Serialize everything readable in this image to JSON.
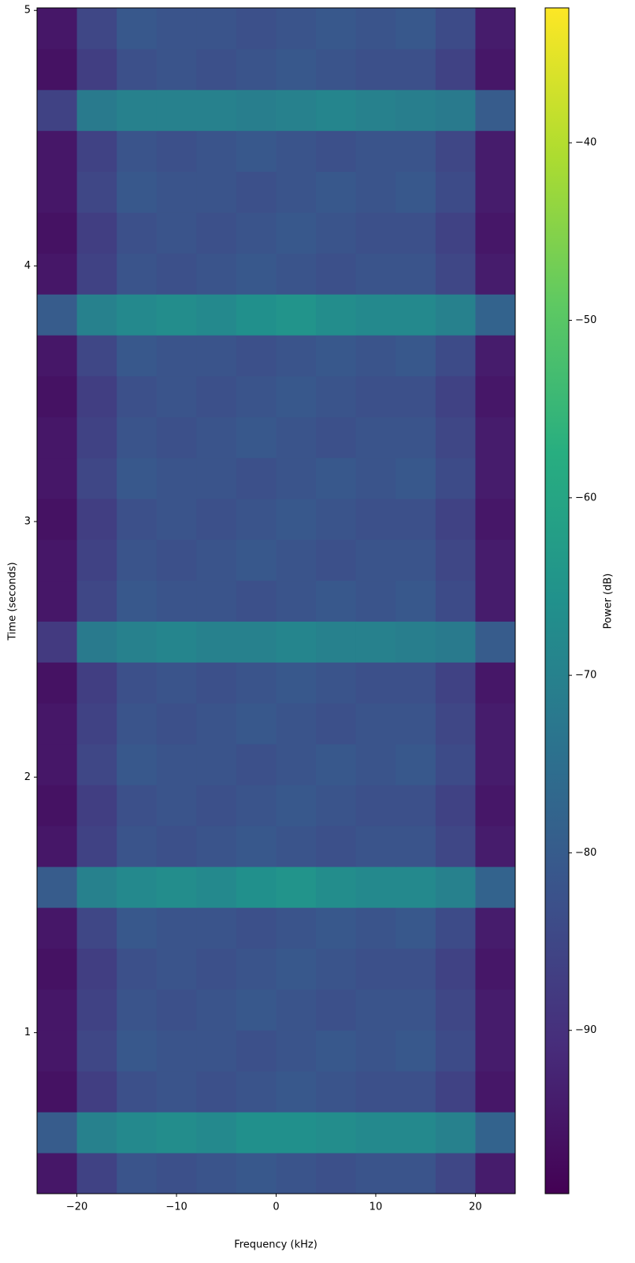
{
  "chart_data": {
    "type": "heatmap",
    "colormap": "viridis",
    "xlabel": "Frequency (kHz)",
    "ylabel": "Time (seconds)",
    "colorbar_label": "Power (dB)",
    "x": [
      -24,
      -20,
      -16,
      -12,
      -8,
      -4,
      0,
      4,
      8,
      12,
      16,
      20,
      24
    ],
    "y": [
      0.37,
      0.53,
      0.69,
      0.85,
      1.01,
      1.17,
      1.33,
      1.49,
      1.65,
      1.81,
      1.97,
      2.13,
      2.29,
      2.45,
      2.61,
      2.77,
      2.93,
      3.09,
      3.25,
      3.41,
      3.57,
      3.73,
      3.89,
      4.05,
      4.21,
      4.37,
      4.53,
      4.69,
      4.85,
      5.01
    ],
    "values": [
      [
        -95,
        -86,
        -82,
        -83,
        -82,
        -81,
        -82,
        -83,
        -82,
        -82,
        -85,
        -94
      ],
      [
        -80,
        -70,
        -68,
        -67,
        -68,
        -66,
        -66,
        -67,
        -68,
        -68,
        -70,
        -78
      ],
      [
        -96,
        -87,
        -83,
        -82,
        -83,
        -82,
        -81,
        -82,
        -83,
        -83,
        -86,
        -95
      ],
      [
        -95,
        -85,
        -81,
        -82,
        -82,
        -83,
        -82,
        -81,
        -82,
        -81,
        -84,
        -94
      ],
      [
        -95,
        -86,
        -82,
        -83,
        -82,
        -81,
        -82,
        -83,
        -82,
        -82,
        -85,
        -94
      ],
      [
        -96,
        -87,
        -83,
        -82,
        -83,
        -82,
        -81,
        -82,
        -83,
        -83,
        -86,
        -95
      ],
      [
        -95,
        -85,
        -81,
        -82,
        -82,
        -83,
        -82,
        -81,
        -82,
        -81,
        -84,
        -94
      ],
      [
        -80,
        -70,
        -68,
        -67,
        -68,
        -66,
        -65,
        -67,
        -68,
        -68,
        -70,
        -78
      ],
      [
        -95,
        -86,
        -82,
        -83,
        -82,
        -81,
        -82,
        -83,
        -82,
        -82,
        -85,
        -94
      ],
      [
        -96,
        -87,
        -83,
        -82,
        -83,
        -82,
        -81,
        -82,
        -83,
        -83,
        -86,
        -95
      ],
      [
        -95,
        -85,
        -81,
        -82,
        -82,
        -83,
        -82,
        -81,
        -82,
        -81,
        -84,
        -94
      ],
      [
        -95,
        -86,
        -82,
        -83,
        -82,
        -81,
        -82,
        -83,
        -82,
        -82,
        -85,
        -94
      ],
      [
        -96,
        -87,
        -83,
        -82,
        -83,
        -82,
        -81,
        -82,
        -83,
        -83,
        -86,
        -95
      ],
      [
        -88,
        -72,
        -70,
        -69,
        -70,
        -70,
        -69,
        -70,
        -70,
        -71,
        -72,
        -80
      ],
      [
        -95,
        -85,
        -81,
        -82,
        -82,
        -83,
        -82,
        -81,
        -82,
        -81,
        -84,
        -94
      ],
      [
        -95,
        -86,
        -82,
        -83,
        -82,
        -81,
        -82,
        -83,
        -82,
        -82,
        -85,
        -94
      ],
      [
        -96,
        -87,
        -83,
        -82,
        -83,
        -82,
        -81,
        -82,
        -83,
        -83,
        -86,
        -95
      ],
      [
        -95,
        -85,
        -81,
        -82,
        -82,
        -83,
        -82,
        -81,
        -82,
        -81,
        -84,
        -94
      ],
      [
        -95,
        -86,
        -82,
        -83,
        -82,
        -81,
        -82,
        -83,
        -82,
        -82,
        -85,
        -94
      ],
      [
        -96,
        -87,
        -83,
        -82,
        -83,
        -82,
        -81,
        -82,
        -83,
        -83,
        -86,
        -95
      ],
      [
        -95,
        -85,
        -81,
        -82,
        -82,
        -83,
        -82,
        -81,
        -82,
        -81,
        -84,
        -94
      ],
      [
        -80,
        -70,
        -68,
        -67,
        -68,
        -66,
        -65,
        -67,
        -68,
        -68,
        -70,
        -78
      ],
      [
        -95,
        -86,
        -82,
        -83,
        -82,
        -81,
        -82,
        -83,
        -82,
        -82,
        -85,
        -94
      ],
      [
        -96,
        -87,
        -83,
        -82,
        -83,
        -82,
        -81,
        -82,
        -83,
        -83,
        -86,
        -95
      ],
      [
        -95,
        -85,
        -81,
        -82,
        -82,
        -83,
        -82,
        -81,
        -82,
        -81,
        -84,
        -94
      ],
      [
        -95,
        -86,
        -82,
        -83,
        -82,
        -81,
        -82,
        -83,
        -82,
        -82,
        -85,
        -94
      ],
      [
        -86,
        -72,
        -70,
        -70,
        -70,
        -71,
        -70,
        -69,
        -70,
        -71,
        -72,
        -80
      ],
      [
        -96,
        -87,
        -83,
        -82,
        -83,
        -82,
        -81,
        -82,
        -83,
        -83,
        -86,
        -95
      ],
      [
        -95,
        -85,
        -81,
        -82,
        -82,
        -83,
        -82,
        -81,
        -82,
        -81,
        -84,
        -94
      ]
    ],
    "xlim": [
      -24,
      24
    ],
    "ylim": [
      0.37,
      5.01
    ],
    "clim": [
      -99.2,
      -32.4
    ],
    "xticks": [
      {
        "value": -20,
        "label": "−20"
      },
      {
        "value": -10,
        "label": "−10"
      },
      0,
      10,
      20
    ],
    "yticks": [
      1,
      2,
      3,
      4,
      5
    ],
    "cticks": [
      {
        "value": -90,
        "label": "−90"
      },
      {
        "value": -80,
        "label": "−80"
      },
      {
        "value": -70,
        "label": "−70"
      },
      {
        "value": -60,
        "label": "−60"
      },
      {
        "value": -50,
        "label": "−50"
      },
      {
        "value": -40,
        "label": "−40"
      }
    ]
  }
}
